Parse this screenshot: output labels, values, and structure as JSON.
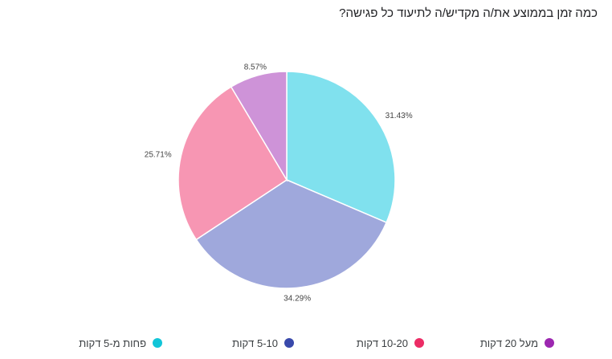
{
  "title": "כמה זמן בממוצע את/ה מקדיש/ה לתיעוד כל פגישה?",
  "chart_data": {
    "type": "pie",
    "title": "כמה זמן בממוצע את/ה מקדיש/ה לתיעוד כל פגישה?",
    "categories": [
      "פחות מ-5 דקות",
      "5-10 דקות",
      "10-20 דקות",
      "מעל 20 דקות"
    ],
    "values": [
      31.43,
      34.29,
      25.71,
      8.57
    ],
    "labels": [
      "31.43%",
      "34.29%",
      "25.71%",
      "8.57%"
    ],
    "slice_colors": [
      "#80e1ee",
      "#9fa8dc",
      "#f796b3",
      "#ce93d8"
    ],
    "legend_colors": [
      "#12c5d8",
      "#3949ab",
      "#ec2c65",
      "#9c27b0"
    ],
    "legend_placement": "bottom",
    "start_angle": "12 o'clock, clockwise"
  }
}
